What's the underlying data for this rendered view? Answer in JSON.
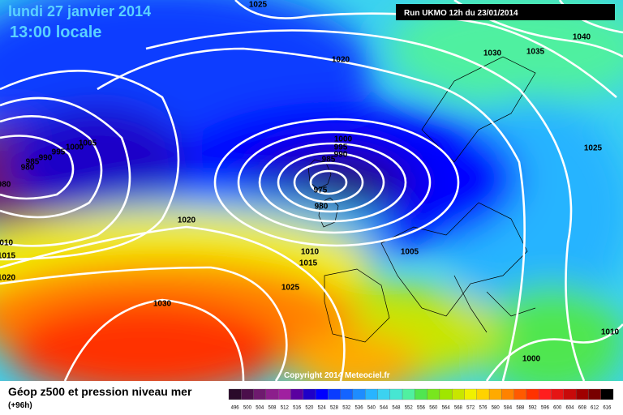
{
  "header": {
    "date": "lundi 27 janvier 2014",
    "time": "13:00 locale",
    "run": "Run UKMO 12h du 23/01/2014"
  },
  "isobar_labels": [
    1025,
    1020,
    1030,
    1035,
    1040,
    1025,
    1000,
    995,
    990,
    985,
    975,
    980,
    1005,
    1000,
    995,
    990,
    985,
    980,
    980,
    1010,
    1015,
    1020,
    1020,
    1010,
    1015,
    1005,
    1025,
    1030,
    1010,
    1000
  ],
  "copyright": "Copyright 2014 Meteociel.fr",
  "footer": {
    "title": "Géop z500 et pression niveau mer",
    "lead": "(+96h)"
  },
  "scale": {
    "labels": [
      496,
      500,
      504,
      508,
      512,
      516,
      520,
      524,
      528,
      532,
      536,
      540,
      544,
      548,
      552,
      556,
      560,
      564,
      568,
      572,
      576,
      580,
      584,
      588,
      592,
      596,
      600,
      604,
      608,
      612,
      616
    ],
    "colors": [
      "#2a0a2a",
      "#4b0f4b",
      "#6e1a6e",
      "#8c1e8c",
      "#a020a0",
      "#5a00a0",
      "#1e00c8",
      "#0000ff",
      "#0a3cff",
      "#1464ff",
      "#1e8cff",
      "#28b4ff",
      "#3cd2f0",
      "#46e6d2",
      "#50f0a0",
      "#50e650",
      "#78e61e",
      "#a0e600",
      "#c8e600",
      "#f0f000",
      "#ffd200",
      "#ffaa00",
      "#ff8200",
      "#ff5a00",
      "#ff3200",
      "#ff1e1e",
      "#e61414",
      "#c80a0a",
      "#a00000",
      "#780000",
      "#000000"
    ]
  }
}
